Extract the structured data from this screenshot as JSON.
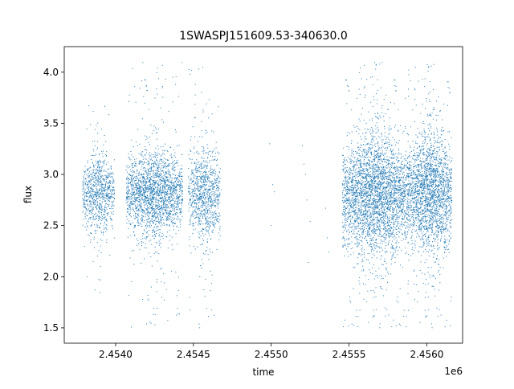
{
  "chart_data": {
    "type": "scatter",
    "title": "1SWASPJ151609.53-340630.0",
    "xlabel": "time",
    "ylabel": "flux",
    "x_offset_label": "1e6",
    "xlim": [
      2.45367,
      2.45623
    ],
    "ylim": [
      1.35,
      4.25
    ],
    "x_ticks": [
      2.454,
      2.4545,
      2.455,
      2.4555,
      2.456
    ],
    "x_tick_labels": [
      "2.4540",
      "2.4545",
      "2.4550",
      "2.4555",
      "2.4560"
    ],
    "y_ticks": [
      1.5,
      2.0,
      2.5,
      3.0,
      3.5,
      4.0
    ],
    "y_tick_labels": [
      "1.5",
      "2.0",
      "2.5",
      "3.0",
      "3.5",
      "4.0"
    ],
    "grid": false,
    "marker_color": "#1f77b4",
    "series": [
      {
        "points_note": "dense observing seasons of flux vs time",
        "clusters": [
          {
            "x_center": 2.45389,
            "x_halfwidth": 0.0001,
            "y_center": 2.8,
            "y_sd": 0.18,
            "y_min": 1.8,
            "y_max": 3.75,
            "density": 0.55
          },
          {
            "x_center": 2.45425,
            "x_halfwidth": 0.00018,
            "y_center": 2.8,
            "y_sd": 0.2,
            "y_min": 1.5,
            "y_max": 4.1,
            "density": 0.75
          },
          {
            "x_center": 2.45457,
            "x_halfwidth": 0.0001,
            "y_center": 2.78,
            "y_sd": 0.22,
            "y_min": 1.48,
            "y_max": 4.05,
            "density": 0.6
          },
          {
            "x_center": 2.45567,
            "x_halfwidth": 0.00021,
            "y_center": 2.78,
            "y_sd": 0.28,
            "y_min": 1.48,
            "y_max": 4.1,
            "density": 1.0
          },
          {
            "x_center": 2.45602,
            "x_halfwidth": 0.00014,
            "y_center": 2.8,
            "y_sd": 0.28,
            "y_min": 1.48,
            "y_max": 4.08,
            "density": 1.0
          }
        ],
        "sparse_points": [
          [
            2.45466,
            2.98
          ],
          [
            2.45468,
            2.85
          ],
          [
            2.45467,
            2.6
          ],
          [
            2.45499,
            3.3
          ],
          [
            2.455,
            2.5
          ],
          [
            2.45501,
            2.9
          ],
          [
            2.45502,
            2.83
          ],
          [
            2.4552,
            3.28
          ],
          [
            2.45521,
            3.1
          ],
          [
            2.45522,
            3.0
          ],
          [
            2.45523,
            2.75
          ],
          [
            2.45524,
            2.14
          ],
          [
            2.45525,
            2.54
          ],
          [
            2.45535,
            2.67
          ],
          [
            2.45536,
            2.38
          ],
          [
            2.45537,
            2.24
          ]
        ]
      }
    ]
  }
}
